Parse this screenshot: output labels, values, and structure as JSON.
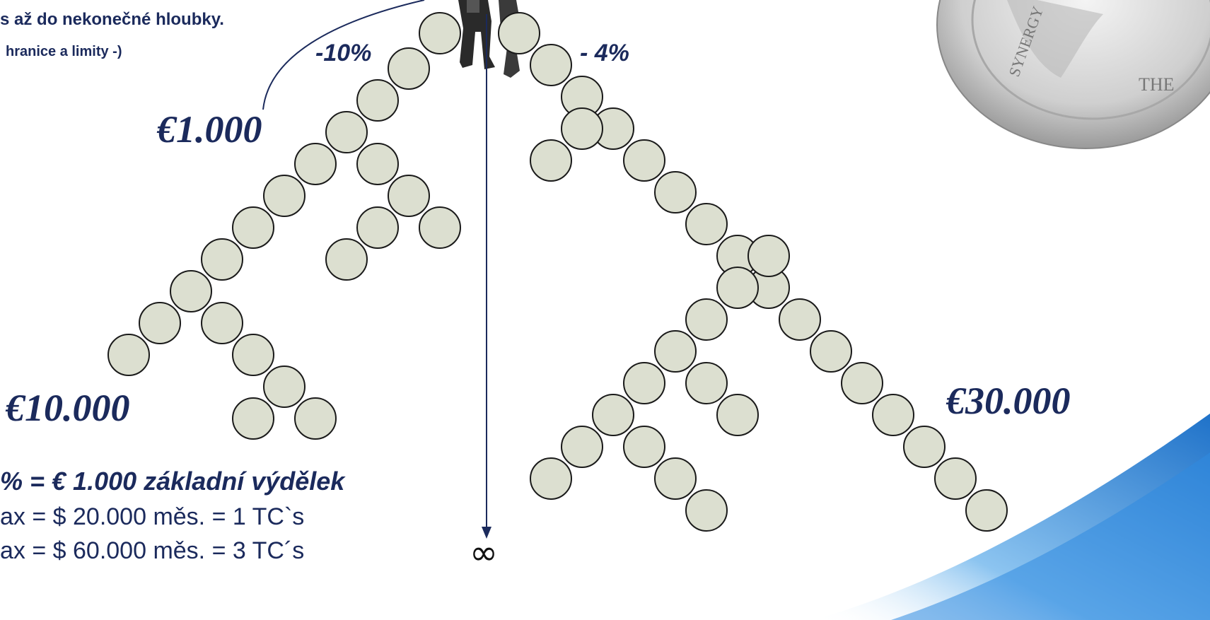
{
  "notes": {
    "line1": "s až do nekonečné hloubky.",
    "line2": "hranice a limity -)"
  },
  "percent_left": "-10%",
  "percent_right": "- 4%",
  "euro_1000": "€1.000",
  "euro_10000": "€10.000",
  "euro_30000": "€30.000",
  "footer": {
    "line1": "% = € 1.000  základní výdělek",
    "line2": "ax = $ 20.000 měs. = 1 TC`s",
    "line3": "ax = $ 60.000 měs. = 3 TC´s"
  },
  "infinity_symbol": "∞",
  "coin_text": {
    "rim": "SYNERGY",
    "face": "THE"
  },
  "colors": {
    "node_fill": "#dcdfd0",
    "node_stroke": "#1a1a1a",
    "text": "#1b2a5c",
    "swoosh": "#2a86d8"
  }
}
